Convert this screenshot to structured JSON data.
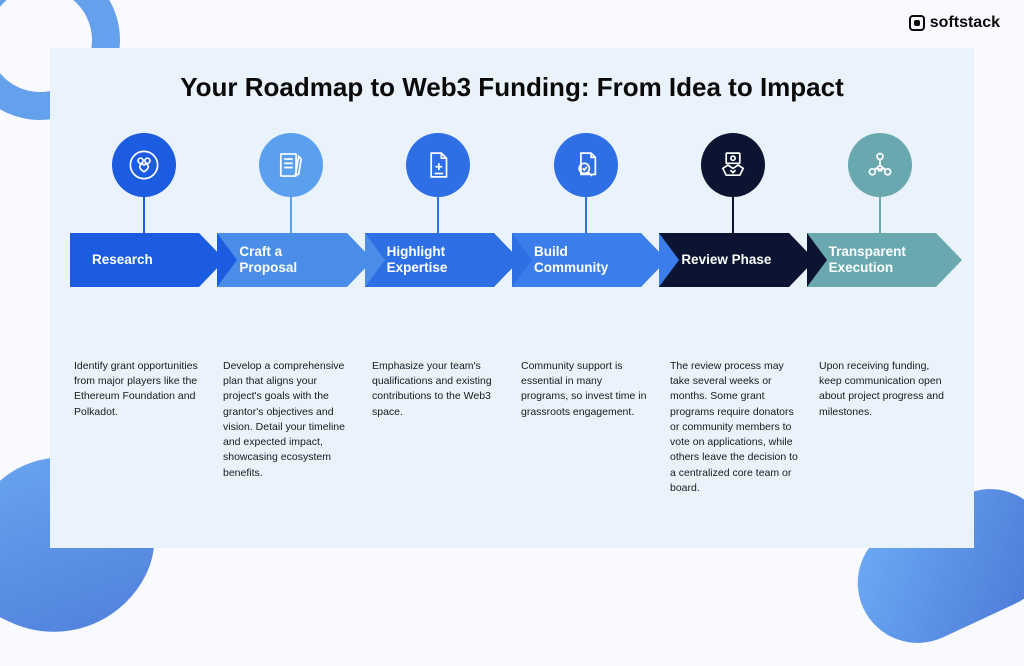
{
  "brand": {
    "name": "softstack"
  },
  "title": "Your Roadmap to Web3 Funding: From Idea to Impact",
  "panel_background": "#eaf2fb",
  "page_background": "#f8fafd",
  "title_fontsize": 26,
  "steps": [
    {
      "label": "Research",
      "description": "Identify grant opportunities from major players like the Ethereum Foundation and Polkadot.",
      "circle_color": "#1b5ce0",
      "arrow_color": "#1b5ce0",
      "stem_color": "#1b5ce0",
      "icon": "people-heart",
      "notch_color": "#eaf2fb"
    },
    {
      "label": "Craft a Proposal",
      "description": "Develop a comprehensive plan that aligns your project's goals with the grantor's objectives and vision. Detail your timeline and expected impact, showcasing ecosystem benefits.",
      "circle_color": "#5aa0ef",
      "arrow_color": "#4a8de8",
      "stem_color": "#5aa0ef",
      "icon": "document-pencil",
      "notch_color": "#1b5ce0"
    },
    {
      "label": "Highlight Expertise",
      "description": "Emphasize your team's qualifications and existing contributions to the Web3 space.",
      "circle_color": "#2e6fe5",
      "arrow_color": "#2e6fe5",
      "stem_color": "#2e6fe5",
      "icon": "document-plus",
      "notch_color": "#4a8de8"
    },
    {
      "label": "Build Community",
      "description": "Community support is essential in many programs, so invest time in grassroots engagement.",
      "circle_color": "#2e6fe5",
      "arrow_color": "#3b7dea",
      "stem_color": "#2e6fe5",
      "icon": "document-check-magnify",
      "notch_color": "#2e6fe5"
    },
    {
      "label": "Review Phase",
      "description": "The review process may take several weeks or months. Some grant programs require donators or community members to vote on applications, while others leave the decision to a centralized core team or board.",
      "circle_color": "#0b1430",
      "arrow_color": "#0b1430",
      "stem_color": "#0b1430",
      "icon": "handshake",
      "notch_color": "#3b7dea"
    },
    {
      "label": "Transparent Execution",
      "description": "Upon receiving funding, keep communication open about project progress and milestones.",
      "circle_color": "#6aa8b0",
      "arrow_color": "#6aa8b0",
      "stem_color": "#6aa8b0",
      "icon": "org-chart",
      "notch_color": "#0b1430"
    }
  ]
}
